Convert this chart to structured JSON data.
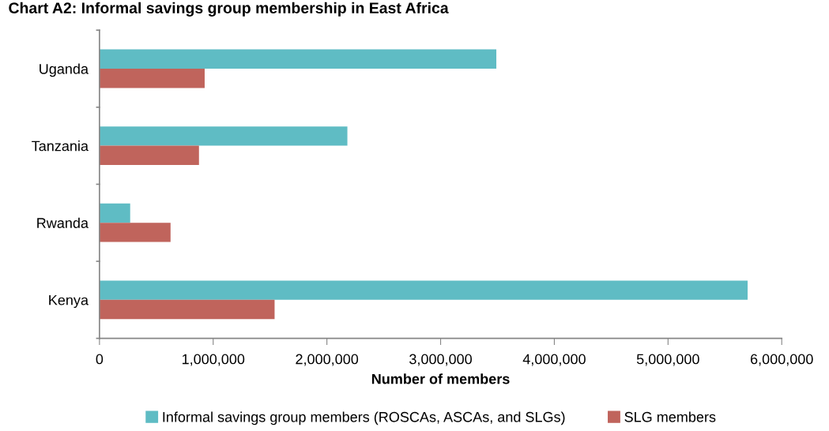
{
  "chart_data": {
    "type": "bar",
    "orientation": "horizontal",
    "title": "Chart A2: Informal savings group membership in East Africa",
    "xlabel": "Number of members",
    "categories": [
      "Uganda",
      "Tanzania",
      "Rwanda",
      "Kenya"
    ],
    "series": [
      {
        "name": "Informal savings group members (ROSCAs, ASCAs, and SLGs)",
        "color": "#5fbcc4",
        "values": [
          3490000,
          2180000,
          270000,
          5700000
        ]
      },
      {
        "name": "SLG members",
        "color": "#c0645c",
        "values": [
          925000,
          875000,
          625000,
          1540000
        ]
      }
    ],
    "xlim": [
      0,
      6000000
    ],
    "xticks": [
      {
        "value": 0,
        "label": "0"
      },
      {
        "value": 1000000,
        "label": "1,000,000"
      },
      {
        "value": 2000000,
        "label": "2,000,000"
      },
      {
        "value": 3000000,
        "label": "3,000,000"
      },
      {
        "value": 4000000,
        "label": "4,000,000"
      },
      {
        "value": 5000000,
        "label": "5,000,000"
      },
      {
        "value": 6000000,
        "label": "6,000,000"
      }
    ],
    "grid": false,
    "legend": "bottom"
  }
}
